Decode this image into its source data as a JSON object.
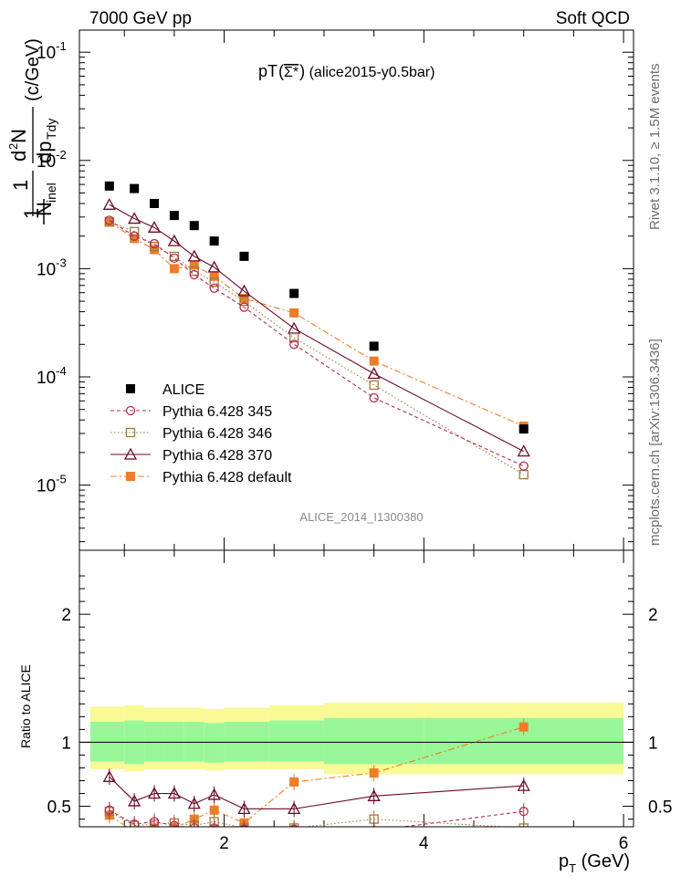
{
  "header": {
    "left": "7000 GeV pp",
    "right": "Soft QCD"
  },
  "side": {
    "rivet": "Rivet 3.1.10, ≥ 1.5M events",
    "mcplots": "mcplots.cern.ch [arXiv:1306.3436]"
  },
  "chart_data": {
    "type": "scatter",
    "title": "pT(Σ*̅) (alice2015-y0.5bar)",
    "title_main": "pT",
    "title_particle": "Σ*",
    "title_rest": " (alice2015-y0.5bar)",
    "watermark": "ALICE_2014_I1300380",
    "xlabel": "p_T (GeV)",
    "xlabel_main": "p",
    "xlabel_sub": "T",
    "xlabel_unit": " (GeV)",
    "ylabel_unit": "(c/GeV)",
    "xlim": [
      0.55,
      6.1
    ],
    "ylim": [
      2.5e-06,
      0.16
    ],
    "yscale": "log",
    "x_ticks": [
      "2",
      "4",
      "6"
    ],
    "y_ticks": [
      "10",
      "10",
      "10",
      "10",
      "10"
    ],
    "y_tick_exponents": [
      "-1",
      "-2",
      "-3",
      "-4",
      "-5"
    ],
    "legend_position": "left",
    "x": [
      0.85,
      1.1,
      1.3,
      1.5,
      1.7,
      1.9,
      2.2,
      2.7,
      3.5,
      5.0
    ],
    "series": [
      {
        "name": "ALICE",
        "color": "#000000",
        "marker": "filled-square",
        "style": "none",
        "values": [
          0.0058,
          0.0055,
          0.004,
          0.0031,
          0.0025,
          0.0018,
          0.0013,
          0.00059,
          0.000192,
          3.3e-05
        ]
      },
      {
        "name": "Pythia 6.428 345",
        "color": "#b0324e",
        "marker": "open-circle",
        "style": "dashed",
        "values": [
          0.0028,
          0.002,
          0.0017,
          0.00125,
          0.00088,
          0.00066,
          0.00044,
          0.0002,
          6.4e-05,
          1.5e-05
        ]
      },
      {
        "name": "Pythia 6.428 346",
        "color": "#a07840",
        "marker": "open-square",
        "style": "dotted",
        "values": [
          0.0027,
          0.0022,
          0.0016,
          0.0013,
          0.00095,
          0.00075,
          0.0005,
          0.00023,
          8.4e-05,
          1.25e-05
        ]
      },
      {
        "name": "Pythia 6.428 370",
        "color": "#6a0a28",
        "marker": "open-triangle",
        "style": "solid",
        "values": [
          0.0039,
          0.0029,
          0.0024,
          0.0018,
          0.0013,
          0.00103,
          0.00062,
          0.00028,
          0.000107,
          2.05e-05
        ]
      },
      {
        "name": "Pythia 6.428 default",
        "color": "#f07c28",
        "marker": "filled-square",
        "style": "dashdot",
        "values": [
          0.0027,
          0.0019,
          0.0015,
          0.001,
          0.00108,
          0.00085,
          0.00053,
          0.00039,
          0.00014,
          3.5e-05
        ]
      }
    ],
    "ratio": {
      "ylabel": "Ratio to ALICE",
      "ylim": [
        0.34,
        2.5
      ],
      "y_ticks": [
        "0.5",
        "1",
        "2"
      ],
      "reference_line": 1,
      "band_edges": [
        0.55,
        1.0,
        1.2,
        1.4,
        1.6,
        1.8,
        2.0,
        2.45,
        3.0,
        4.0,
        6.0
      ],
      "band_inner": [
        [
          0.85,
          1.16
        ],
        [
          0.83,
          1.17
        ],
        [
          0.85,
          1.16
        ],
        [
          0.85,
          1.16
        ],
        [
          0.85,
          1.16
        ],
        [
          0.84,
          1.15
        ],
        [
          0.85,
          1.16
        ],
        [
          0.85,
          1.17
        ],
        [
          0.83,
          1.19
        ],
        [
          0.83,
          1.19
        ]
      ],
      "band_outer": [
        [
          0.79,
          1.28
        ],
        [
          0.77,
          1.29
        ],
        [
          0.79,
          1.27
        ],
        [
          0.79,
          1.27
        ],
        [
          0.79,
          1.27
        ],
        [
          0.78,
          1.26
        ],
        [
          0.79,
          1.27
        ],
        [
          0.79,
          1.29
        ],
        [
          0.75,
          1.31
        ],
        [
          0.75,
          1.31
        ]
      ],
      "band_colors": {
        "inner": "#99f799",
        "outer": "#f9f996"
      },
      "series": [
        {
          "name": "Pythia 6.428 345",
          "values": [
            0.47,
            0.36,
            0.38,
            0.35,
            0.33,
            0.33,
            0.32,
            0.32,
            0.31,
            0.46
          ]
        },
        {
          "name": "Pythia 6.428 346",
          "values": [
            0.46,
            0.35,
            0.36,
            0.37,
            0.35,
            0.38,
            0.33,
            0.33,
            0.4,
            0.33
          ]
        },
        {
          "name": "Pythia 6.428 370",
          "values": [
            0.73,
            0.54,
            0.6,
            0.6,
            0.52,
            0.59,
            0.48,
            0.48,
            0.58,
            0.66
          ]
        },
        {
          "name": "Pythia 6.428 default",
          "values": [
            0.43,
            0.3,
            0.33,
            0.33,
            0.4,
            0.47,
            0.37,
            0.69,
            0.76,
            1.12
          ]
        }
      ]
    }
  }
}
